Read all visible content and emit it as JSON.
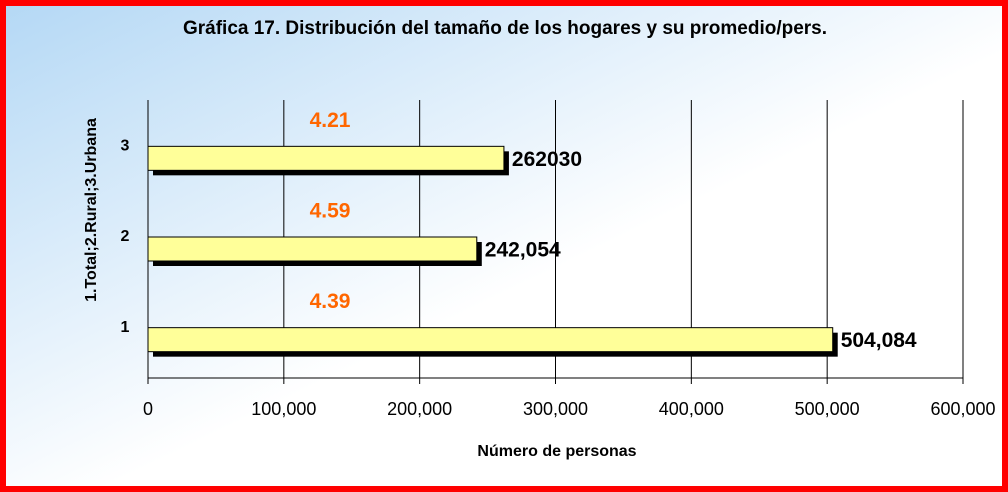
{
  "chart_data": {
    "type": "bar",
    "orientation": "horizontal",
    "title": "Gráfica 17. Distribución del tamaño de los hogares y su promedio/pers.",
    "x_label": "Número de personas",
    "y_label": "1.Total;2.Rural;3.Urbana",
    "categories": [
      "1",
      "2",
      "3"
    ],
    "values": [
      504084,
      242054,
      262030
    ],
    "value_labels": [
      "504,084",
      "242,054",
      "262030"
    ],
    "color": "#ffff99",
    "averages": {
      "values": [
        4.39,
        4.59,
        4.21
      ],
      "color": "#ff6600"
    },
    "xlim": [
      0,
      600000
    ],
    "xticks": [
      0,
      {
        "value": 100000,
        "label": "100,000"
      },
      {
        "value": 200000,
        "label": "200,000"
      },
      {
        "value": 300000,
        "label": "300,000"
      },
      {
        "value": 400000,
        "label": "400,000"
      },
      {
        "value": 500000,
        "label": "500,000"
      },
      {
        "value": 600000,
        "label": "600,000"
      }
    ],
    "grid": true
  }
}
